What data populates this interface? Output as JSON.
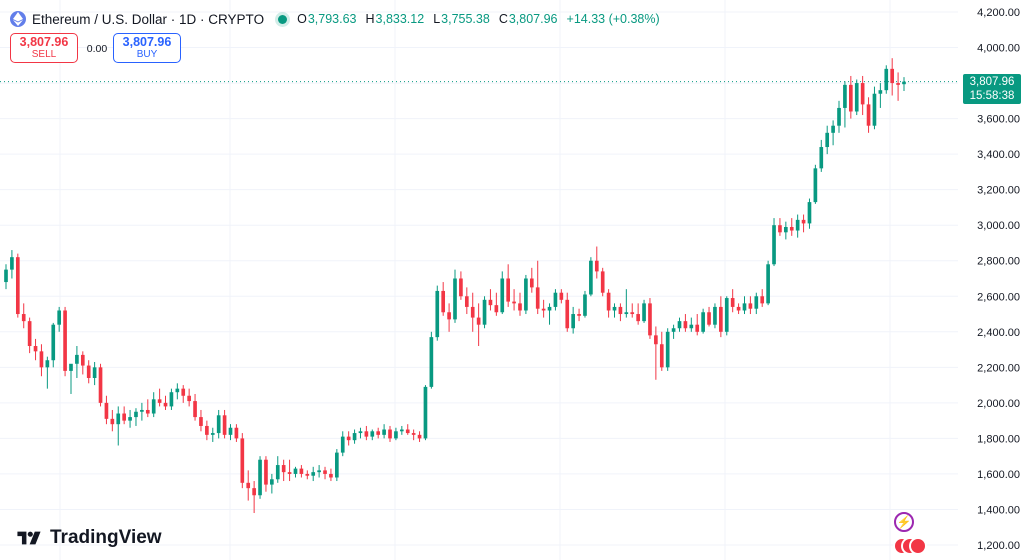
{
  "header": {
    "symbol_title": "Ethereum / U.S. Dollar · 1D · CRYPTO",
    "ohlc": [
      {
        "key": "O",
        "value": "3,793.63"
      },
      {
        "key": "H",
        "value": "3,833.12"
      },
      {
        "key": "L",
        "value": "3,755.38"
      },
      {
        "key": "C",
        "value": "3,807.96"
      }
    ],
    "change": "+14.33 (+0.38%)"
  },
  "trade": {
    "sell_price": "3,807.96",
    "sell_label": "SELL",
    "spread": "0.00",
    "buy_price": "3,807.96",
    "buy_label": "BUY"
  },
  "last_price": {
    "price": "3,807.96",
    "countdown": "15:58:38"
  },
  "brand": {
    "name": "TradingView"
  },
  "colors": {
    "up": "#089981",
    "down": "#f23645",
    "grid": "#f0f3fa",
    "axis_text": "#131722"
  },
  "icons": {
    "lightning": "lightning-icon",
    "events": "economic-events-icon",
    "logo": "tradingview-logo-icon"
  },
  "chart_data": {
    "type": "candlestick",
    "title": "Ethereum / U.S. Dollar · 1D · CRYPTO",
    "ylim": [
      1150,
      4250
    ],
    "y_ticks": [
      1200,
      1400,
      1600,
      1800,
      2000,
      2200,
      2400,
      2600,
      2800,
      3000,
      3200,
      3400,
      3600,
      3800,
      4000,
      4200
    ],
    "y_tick_labels": [
      "1,200.00",
      "1,400.00",
      "1,600.00",
      "1,800.00",
      "2,000.00",
      "2,200.00",
      "2,400.00",
      "2,600.00",
      "2,800.00",
      "3,000.00",
      "3,200.00",
      "3,400.00",
      "3,600.00",
      "3,800.00",
      "4,000.00",
      "4,200.00"
    ],
    "last_price": 3807.96,
    "grid": true,
    "ohlc": [
      [
        2680,
        2780,
        2640,
        2750
      ],
      [
        2750,
        2860,
        2700,
        2820
      ],
      [
        2820,
        2840,
        2480,
        2500
      ],
      [
        2500,
        2560,
        2420,
        2460
      ],
      [
        2460,
        2480,
        2280,
        2320
      ],
      [
        2320,
        2360,
        2240,
        2290
      ],
      [
        2290,
        2330,
        2150,
        2200
      ],
      [
        2200,
        2260,
        2080,
        2240
      ],
      [
        2240,
        2450,
        2200,
        2440
      ],
      [
        2440,
        2540,
        2400,
        2520
      ],
      [
        2520,
        2540,
        2150,
        2180
      ],
      [
        2180,
        2210,
        2050,
        2220
      ],
      [
        2220,
        2320,
        2140,
        2270
      ],
      [
        2270,
        2290,
        2160,
        2210
      ],
      [
        2210,
        2240,
        2110,
        2140
      ],
      [
        2140,
        2230,
        2100,
        2200
      ],
      [
        2200,
        2220,
        1980,
        2000
      ],
      [
        2000,
        2040,
        1880,
        1910
      ],
      [
        1910,
        1960,
        1840,
        1880
      ],
      [
        1880,
        1980,
        1760,
        1940
      ],
      [
        1940,
        1980,
        1880,
        1900
      ],
      [
        1900,
        1960,
        1860,
        1920
      ],
      [
        1920,
        1970,
        1870,
        1950
      ],
      [
        1950,
        2000,
        1900,
        1960
      ],
      [
        1960,
        2020,
        1920,
        1940
      ],
      [
        1940,
        2060,
        1920,
        2020
      ],
      [
        2020,
        2080,
        1980,
        2000
      ],
      [
        2000,
        2040,
        1960,
        1980
      ],
      [
        1980,
        2080,
        1960,
        2060
      ],
      [
        2060,
        2110,
        2020,
        2080
      ],
      [
        2080,
        2100,
        2000,
        2040
      ],
      [
        2040,
        2080,
        1980,
        2010
      ],
      [
        2010,
        2050,
        1900,
        1920
      ],
      [
        1920,
        1960,
        1840,
        1870
      ],
      [
        1870,
        1900,
        1790,
        1820
      ],
      [
        1820,
        1860,
        1780,
        1830
      ],
      [
        1830,
        1960,
        1800,
        1930
      ],
      [
        1930,
        1960,
        1800,
        1820
      ],
      [
        1820,
        1880,
        1790,
        1860
      ],
      [
        1860,
        1880,
        1780,
        1800
      ],
      [
        1800,
        1830,
        1520,
        1550
      ],
      [
        1550,
        1620,
        1450,
        1520
      ],
      [
        1520,
        1560,
        1380,
        1480
      ],
      [
        1480,
        1700,
        1460,
        1680
      ],
      [
        1680,
        1700,
        1500,
        1540
      ],
      [
        1540,
        1600,
        1490,
        1570
      ],
      [
        1570,
        1700,
        1550,
        1650
      ],
      [
        1650,
        1680,
        1560,
        1610
      ],
      [
        1610,
        1680,
        1560,
        1600
      ],
      [
        1600,
        1640,
        1580,
        1630
      ],
      [
        1630,
        1650,
        1580,
        1600
      ],
      [
        1600,
        1620,
        1570,
        1590
      ],
      [
        1590,
        1640,
        1560,
        1610
      ],
      [
        1610,
        1650,
        1580,
        1620
      ],
      [
        1620,
        1640,
        1570,
        1600
      ],
      [
        1600,
        1630,
        1560,
        1580
      ],
      [
        1580,
        1740,
        1560,
        1720
      ],
      [
        1720,
        1840,
        1700,
        1810
      ],
      [
        1810,
        1840,
        1760,
        1790
      ],
      [
        1790,
        1850,
        1770,
        1830
      ],
      [
        1830,
        1860,
        1800,
        1840
      ],
      [
        1840,
        1870,
        1790,
        1810
      ],
      [
        1810,
        1850,
        1790,
        1840
      ],
      [
        1840,
        1860,
        1800,
        1820
      ],
      [
        1820,
        1880,
        1800,
        1850
      ],
      [
        1850,
        1870,
        1780,
        1800
      ],
      [
        1800,
        1860,
        1790,
        1840
      ],
      [
        1840,
        1870,
        1820,
        1850
      ],
      [
        1850,
        1880,
        1820,
        1830
      ],
      [
        1830,
        1850,
        1790,
        1820
      ],
      [
        1820,
        1840,
        1780,
        1800
      ],
      [
        1800,
        2100,
        1790,
        2090
      ],
      [
        2090,
        2400,
        2080,
        2370
      ],
      [
        2370,
        2660,
        2350,
        2630
      ],
      [
        2630,
        2680,
        2490,
        2510
      ],
      [
        2510,
        2560,
        2400,
        2470
      ],
      [
        2470,
        2750,
        2450,
        2700
      ],
      [
        2700,
        2740,
        2580,
        2600
      ],
      [
        2600,
        2650,
        2500,
        2540
      ],
      [
        2540,
        2620,
        2400,
        2480
      ],
      [
        2480,
        2560,
        2320,
        2440
      ],
      [
        2440,
        2600,
        2420,
        2580
      ],
      [
        2580,
        2640,
        2520,
        2550
      ],
      [
        2550,
        2620,
        2490,
        2510
      ],
      [
        2510,
        2740,
        2500,
        2700
      ],
      [
        2700,
        2780,
        2540,
        2570
      ],
      [
        2570,
        2640,
        2520,
        2560
      ],
      [
        2560,
        2620,
        2490,
        2520
      ],
      [
        2520,
        2720,
        2500,
        2700
      ],
      [
        2700,
        2760,
        2620,
        2650
      ],
      [
        2650,
        2800,
        2500,
        2530
      ],
      [
        2530,
        2580,
        2480,
        2520
      ],
      [
        2520,
        2560,
        2440,
        2540
      ],
      [
        2540,
        2640,
        2520,
        2620
      ],
      [
        2620,
        2640,
        2560,
        2580
      ],
      [
        2580,
        2620,
        2400,
        2420
      ],
      [
        2420,
        2540,
        2390,
        2500
      ],
      [
        2500,
        2530,
        2460,
        2490
      ],
      [
        2490,
        2630,
        2480,
        2610
      ],
      [
        2610,
        2820,
        2600,
        2800
      ],
      [
        2800,
        2880,
        2700,
        2740
      ],
      [
        2740,
        2760,
        2600,
        2620
      ],
      [
        2620,
        2640,
        2480,
        2520
      ],
      [
        2520,
        2560,
        2480,
        2540
      ],
      [
        2540,
        2560,
        2460,
        2500
      ],
      [
        2500,
        2640,
        2480,
        2510
      ],
      [
        2510,
        2560,
        2480,
        2500
      ],
      [
        2500,
        2560,
        2440,
        2460
      ],
      [
        2460,
        2580,
        2450,
        2560
      ],
      [
        2560,
        2590,
        2360,
        2380
      ],
      [
        2380,
        2430,
        2130,
        2330
      ],
      [
        2330,
        2400,
        2180,
        2200
      ],
      [
        2200,
        2420,
        2180,
        2400
      ],
      [
        2400,
        2440,
        2360,
        2420
      ],
      [
        2420,
        2480,
        2400,
        2460
      ],
      [
        2460,
        2500,
        2400,
        2420
      ],
      [
        2420,
        2480,
        2400,
        2440
      ],
      [
        2440,
        2500,
        2380,
        2400
      ],
      [
        2400,
        2530,
        2390,
        2510
      ],
      [
        2510,
        2540,
        2430,
        2440
      ],
      [
        2440,
        2560,
        2420,
        2540
      ],
      [
        2540,
        2600,
        2370,
        2400
      ],
      [
        2400,
        2600,
        2380,
        2590
      ],
      [
        2590,
        2640,
        2510,
        2540
      ],
      [
        2540,
        2560,
        2500,
        2520
      ],
      [
        2520,
        2600,
        2500,
        2560
      ],
      [
        2560,
        2600,
        2500,
        2530
      ],
      [
        2530,
        2620,
        2500,
        2600
      ],
      [
        2600,
        2640,
        2540,
        2560
      ],
      [
        2560,
        2800,
        2550,
        2780
      ],
      [
        2780,
        3040,
        2770,
        3000
      ],
      [
        3000,
        3040,
        2940,
        2960
      ],
      [
        2960,
        3020,
        2920,
        2990
      ],
      [
        2990,
        3040,
        2940,
        2970
      ],
      [
        2970,
        3060,
        2930,
        3030
      ],
      [
        3030,
        3060,
        2960,
        3010
      ],
      [
        3010,
        3150,
        2980,
        3130
      ],
      [
        3130,
        3340,
        3120,
        3320
      ],
      [
        3320,
        3480,
        3300,
        3440
      ],
      [
        3440,
        3560,
        3400,
        3520
      ],
      [
        3520,
        3590,
        3450,
        3560
      ],
      [
        3560,
        3700,
        3520,
        3660
      ],
      [
        3660,
        3810,
        3550,
        3790
      ],
      [
        3790,
        3840,
        3600,
        3640
      ],
      [
        3640,
        3820,
        3620,
        3800
      ],
      [
        3800,
        3840,
        3620,
        3680
      ],
      [
        3680,
        3720,
        3520,
        3560
      ],
      [
        3560,
        3780,
        3540,
        3740
      ],
      [
        3740,
        3800,
        3660,
        3760
      ],
      [
        3760,
        3900,
        3740,
        3880
      ],
      [
        3880,
        3940,
        3730,
        3800
      ],
      [
        3800,
        3860,
        3700,
        3790
      ],
      [
        3793.63,
        3833.12,
        3755.38,
        3807.96
      ]
    ]
  }
}
